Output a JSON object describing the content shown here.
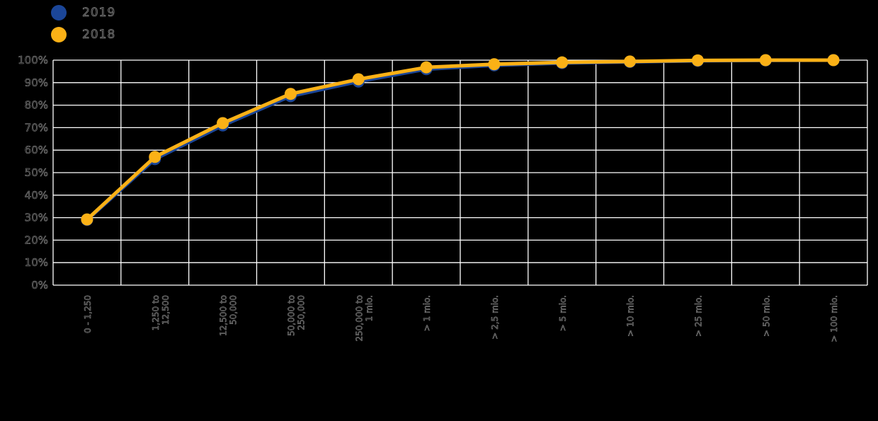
{
  "colors": {
    "background": "#000000",
    "grid": "#ffffff",
    "text_fill": "#141414",
    "text_stroke": "#8f8f8f",
    "series_2019": "#1b4698",
    "series_2018": "#fbb116"
  },
  "legend": {
    "position": "top-left",
    "items": [
      {
        "label": "2019",
        "color": "#1b4698"
      },
      {
        "label": "2018",
        "color": "#fbb116"
      }
    ]
  },
  "chart_data": {
    "type": "line",
    "title": "",
    "xlabel": "",
    "ylabel": "",
    "grid": true,
    "legend_position": "top-left",
    "ylim": [
      0,
      100
    ],
    "ytick_labels": [
      "0%",
      "10%",
      "20%",
      "30%",
      "40%",
      "50%",
      "60%",
      "70%",
      "80%",
      "90%",
      "100%"
    ],
    "ytick_values": [
      0,
      10,
      20,
      30,
      40,
      50,
      60,
      70,
      80,
      90,
      100
    ],
    "categories": [
      "0 - 1,250",
      "1,250 to 12,500",
      "12,500 to 50,000",
      "50,000 to 250,000",
      "250,000 to 1 mio.",
      "> 1 mio.",
      "> 2,5 mio.",
      "> 5 mio.",
      "> 10 mio.",
      "> 25 mio.",
      "> 50 mio.",
      "> 100 mio."
    ],
    "series": [
      {
        "name": "2019",
        "color": "#1b4698",
        "marker": "circle",
        "values": [
          29,
          56,
          71,
          84,
          90.5,
          96,
          97.7,
          98.7,
          99.2,
          99.7,
          99.9,
          100
        ]
      },
      {
        "name": "2018",
        "color": "#fbb116",
        "marker": "circle",
        "values": [
          29.2,
          57,
          72,
          85,
          91.5,
          96.8,
          98.2,
          99,
          99.4,
          99.9,
          100,
          100
        ]
      }
    ]
  }
}
